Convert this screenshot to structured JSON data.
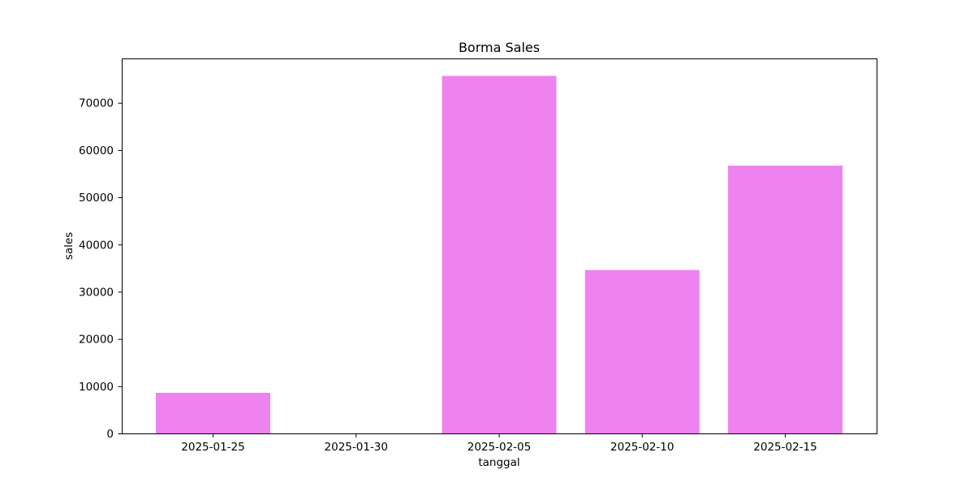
{
  "colors": {
    "bar": "#ee82ee",
    "axes": "#000000",
    "background": "#ffffff"
  },
  "chart_data": {
    "type": "bar",
    "title": "Borma Sales",
    "xlabel": "tanggal",
    "ylabel": "sales",
    "categories": [
      "2025-01-25",
      "2025-01-30",
      "2025-02-05",
      "2025-02-10",
      "2025-02-15"
    ],
    "series": [
      {
        "values": [
          8600,
          0,
          75700,
          34600,
          56700
        ],
        "color": "#ee82ee"
      }
    ],
    "ylim": [
      0,
      79400
    ],
    "yticks": [
      0,
      10000,
      20000,
      30000,
      40000,
      50000,
      60000,
      70000
    ],
    "ytick_labels": [
      "0",
      "10000",
      "20000",
      "30000",
      "40000",
      "50000",
      "60000",
      "70000"
    ],
    "grid": false,
    "legend": "none"
  }
}
